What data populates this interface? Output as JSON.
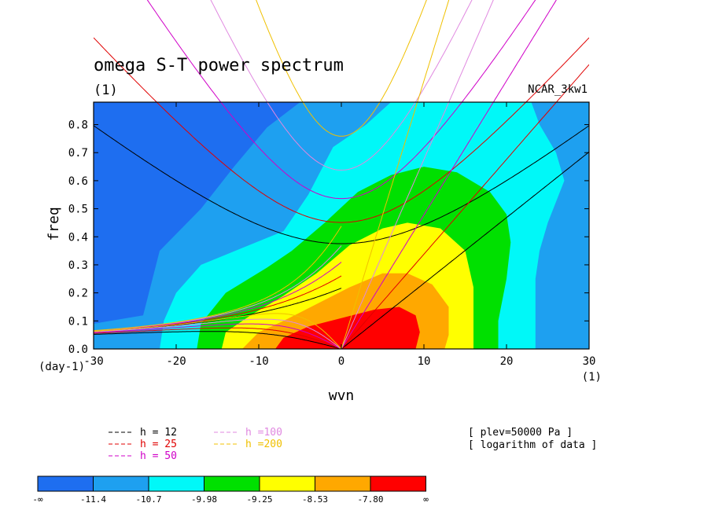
{
  "chart_data": {
    "type": "heatmap",
    "title": "omega S-T power spectrum",
    "subtitle_left": "(1)",
    "subtitle_right": "NCAR_3kw1",
    "xlabel": "wvn",
    "ylabel": "freq",
    "x_unit": "(1)",
    "y_unit": "(day-1)",
    "xlim": [
      -30,
      30
    ],
    "ylim": [
      0,
      0.88
    ],
    "xticks": [
      -30,
      -20,
      -10,
      0,
      10,
      20,
      30
    ],
    "yticks": [
      0.0,
      0.1,
      0.2,
      0.3,
      0.4,
      0.5,
      0.6,
      0.7,
      0.8
    ],
    "contour_levels": [
      "-∞",
      "-11.4",
      "-10.7",
      "-9.98",
      "-9.25",
      "-8.53",
      "-7.80",
      "∞"
    ],
    "fill_colors": [
      "#1e6ef0",
      "#1ea0f0",
      "#00f8f8",
      "#00e000",
      "#ffff00",
      "#ffa800",
      "#ff0000"
    ],
    "bands": [
      {
        "level": 1,
        "color": "#1ea0f0",
        "points": [
          [
            -30,
            0
          ],
          [
            -30,
            0.09
          ],
          [
            -24,
            0.12
          ],
          [
            -22,
            0.35
          ],
          [
            -17,
            0.5
          ],
          [
            -13,
            0.65
          ],
          [
            -9,
            0.79
          ],
          [
            -5,
            0.88
          ],
          [
            30,
            0.88
          ],
          [
            30,
            0
          ]
        ]
      },
      {
        "level": 2,
        "color": "#00f8f8",
        "points": [
          [
            -22,
            0
          ],
          [
            -21.5,
            0.1
          ],
          [
            -20,
            0.2
          ],
          [
            -17,
            0.3
          ],
          [
            -12,
            0.36
          ],
          [
            -7,
            0.42
          ],
          [
            -4,
            0.55
          ],
          [
            -1,
            0.72
          ],
          [
            3,
            0.8
          ],
          [
            6,
            0.88
          ],
          [
            23,
            0.88
          ],
          [
            24,
            0.8
          ],
          [
            26,
            0.7
          ],
          [
            27,
            0.6
          ],
          [
            25,
            0.45
          ],
          [
            24,
            0.35
          ],
          [
            23.5,
            0.25
          ],
          [
            23.5,
            0
          ]
        ]
      },
      {
        "level": 3,
        "color": "#00e000",
        "points": [
          [
            -17.5,
            0
          ],
          [
            -17,
            0.09
          ],
          [
            -14,
            0.2
          ],
          [
            -9,
            0.29
          ],
          [
            -6,
            0.35
          ],
          [
            -2,
            0.45
          ],
          [
            2,
            0.56
          ],
          [
            6,
            0.62
          ],
          [
            10,
            0.65
          ],
          [
            14,
            0.63
          ],
          [
            18,
            0.56
          ],
          [
            20,
            0.48
          ],
          [
            20.5,
            0.38
          ],
          [
            20,
            0.25
          ],
          [
            19,
            0.1
          ],
          [
            19,
            0
          ]
        ]
      },
      {
        "level": 4,
        "color": "#ffff00",
        "points": [
          [
            -14.5,
            0
          ],
          [
            -14,
            0.06
          ],
          [
            -11,
            0.12
          ],
          [
            -7,
            0.19
          ],
          [
            -3,
            0.27
          ],
          [
            1,
            0.37
          ],
          [
            5,
            0.43
          ],
          [
            8,
            0.45
          ],
          [
            12,
            0.43
          ],
          [
            15,
            0.35
          ],
          [
            16,
            0.22
          ],
          [
            16,
            0
          ]
        ]
      },
      {
        "level": 5,
        "color": "#ffa800",
        "points": [
          [
            -12,
            0
          ],
          [
            -10,
            0.06
          ],
          [
            -7,
            0.1
          ],
          [
            -3,
            0.16
          ],
          [
            1,
            0.22
          ],
          [
            5,
            0.27
          ],
          [
            8,
            0.27
          ],
          [
            11,
            0.23
          ],
          [
            13,
            0.15
          ],
          [
            13,
            0.05
          ],
          [
            12.5,
            0
          ]
        ]
      },
      {
        "level": 6,
        "color": "#ff0000",
        "points": [
          [
            -8,
            0
          ],
          [
            -7,
            0.04
          ],
          [
            -4,
            0.08
          ],
          [
            0,
            0.11
          ],
          [
            4,
            0.14
          ],
          [
            7,
            0.15
          ],
          [
            9,
            0.12
          ],
          [
            9.5,
            0.06
          ],
          [
            9,
            0
          ]
        ]
      }
    ],
    "series": [
      {
        "name": "h = 12",
        "color": "#000000"
      },
      {
        "name": "h = 25",
        "color": "#e00000"
      },
      {
        "name": "h = 50",
        "color": "#d000c8"
      },
      {
        "name": "h =100",
        "color": "#e088e0"
      },
      {
        "name": "h =200",
        "color": "#f0c000"
      }
    ],
    "annotations": [
      "[ plev=50000 Pa ]",
      "[ logarithm of data ]"
    ]
  }
}
